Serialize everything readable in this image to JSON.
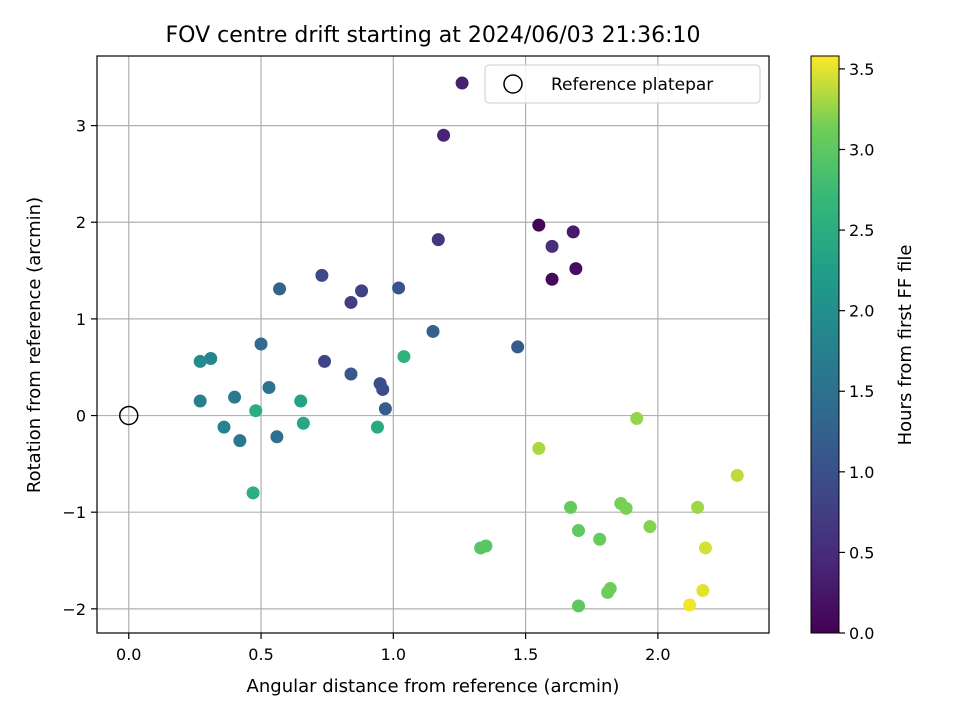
{
  "chart_data": {
    "type": "scatter",
    "title": "FOV centre drift starting at 2024/06/03 21:36:10",
    "xlabel": "Angular distance from reference (arcmin)",
    "ylabel": "Rotation from reference (arcmin)",
    "xlim": [
      -0.12,
      2.42
    ],
    "ylim": [
      -2.25,
      3.72
    ],
    "xticks": [
      0.0,
      0.5,
      1.0,
      1.5,
      2.0
    ],
    "xtick_labels": [
      "0.0",
      "0.5",
      "1.0",
      "1.5",
      "2.0"
    ],
    "yticks": [
      -2,
      -1,
      0,
      1,
      2,
      3
    ],
    "ytick_labels": [
      "−2",
      "−1",
      "0",
      "1",
      "2",
      "3"
    ],
    "grid": true,
    "legend": {
      "position": "top-right",
      "entries": [
        {
          "label": "Reference platepar",
          "marker": "open-circle"
        }
      ]
    },
    "reference_point": {
      "x": 0.0,
      "y": 0.0
    },
    "colorbar": {
      "label": "Hours from first FF file",
      "range": [
        0.0,
        3.58
      ],
      "ticks": [
        0.0,
        0.5,
        1.0,
        1.5,
        2.0,
        2.5,
        3.0,
        3.5
      ],
      "tick_labels": [
        "0.0",
        "0.5",
        "1.0",
        "1.5",
        "2.0",
        "2.5",
        "3.0",
        "3.5"
      ],
      "colormap": "viridis"
    },
    "points": [
      {
        "x": 1.55,
        "y": 1.97,
        "c": 0.05
      },
      {
        "x": 1.6,
        "y": 1.41,
        "c": 0.1
      },
      {
        "x": 1.69,
        "y": 1.52,
        "c": 0.15
      },
      {
        "x": 1.68,
        "y": 1.9,
        "c": 0.3
      },
      {
        "x": 1.26,
        "y": 3.44,
        "c": 0.35
      },
      {
        "x": 1.19,
        "y": 2.9,
        "c": 0.4
      },
      {
        "x": 1.6,
        "y": 1.75,
        "c": 0.55
      },
      {
        "x": 1.17,
        "y": 1.82,
        "c": 0.65
      },
      {
        "x": 0.84,
        "y": 1.17,
        "c": 0.75
      },
      {
        "x": 0.88,
        "y": 1.29,
        "c": 0.8
      },
      {
        "x": 0.74,
        "y": 0.56,
        "c": 0.85
      },
      {
        "x": 0.73,
        "y": 1.45,
        "c": 0.9
      },
      {
        "x": 0.96,
        "y": 0.27,
        "c": 0.95
      },
      {
        "x": 0.95,
        "y": 0.33,
        "c": 1.0
      },
      {
        "x": 1.02,
        "y": 1.32,
        "c": 1.05
      },
      {
        "x": 0.84,
        "y": 0.43,
        "c": 1.1
      },
      {
        "x": 1.47,
        "y": 0.71,
        "c": 1.15
      },
      {
        "x": 0.97,
        "y": 0.07,
        "c": 1.2
      },
      {
        "x": 1.15,
        "y": 0.87,
        "c": 1.25
      },
      {
        "x": 0.57,
        "y": 1.31,
        "c": 1.3
      },
      {
        "x": 0.5,
        "y": 0.74,
        "c": 1.4
      },
      {
        "x": 0.56,
        "y": -0.22,
        "c": 1.45
      },
      {
        "x": 0.53,
        "y": 0.29,
        "c": 1.55
      },
      {
        "x": 0.42,
        "y": -0.26,
        "c": 1.6
      },
      {
        "x": 0.4,
        "y": 0.19,
        "c": 1.65
      },
      {
        "x": 0.27,
        "y": 0.15,
        "c": 1.75
      },
      {
        "x": 0.36,
        "y": -0.12,
        "c": 1.8
      },
      {
        "x": 0.31,
        "y": 0.59,
        "c": 1.85
      },
      {
        "x": 0.27,
        "y": 0.56,
        "c": 1.95
      },
      {
        "x": 0.65,
        "y": 0.15,
        "c": 2.35
      },
      {
        "x": 0.66,
        "y": -0.08,
        "c": 2.4
      },
      {
        "x": 0.94,
        "y": -0.12,
        "c": 2.45
      },
      {
        "x": 0.48,
        "y": 0.05,
        "c": 2.5
      },
      {
        "x": 0.47,
        "y": -0.8,
        "c": 2.55
      },
      {
        "x": 1.04,
        "y": 0.61,
        "c": 2.6
      },
      {
        "x": 1.33,
        "y": -1.37,
        "c": 2.95
      },
      {
        "x": 1.35,
        "y": -1.35,
        "c": 2.97
      },
      {
        "x": 1.7,
        "y": -1.97,
        "c": 3.0
      },
      {
        "x": 1.7,
        "y": -1.19,
        "c": 3.03
      },
      {
        "x": 1.67,
        "y": -0.95,
        "c": 3.05
      },
      {
        "x": 1.78,
        "y": -1.28,
        "c": 3.08
      },
      {
        "x": 1.81,
        "y": -1.83,
        "c": 3.1
      },
      {
        "x": 1.82,
        "y": -1.79,
        "c": 3.12
      },
      {
        "x": 1.86,
        "y": -0.91,
        "c": 3.15
      },
      {
        "x": 1.88,
        "y": -0.96,
        "c": 3.17
      },
      {
        "x": 1.97,
        "y": -1.15,
        "c": 3.2
      },
      {
        "x": 1.92,
        "y": -0.03,
        "c": 3.25
      },
      {
        "x": 2.15,
        "y": -0.95,
        "c": 3.28
      },
      {
        "x": 1.55,
        "y": -0.34,
        "c": 3.32
      },
      {
        "x": 2.3,
        "y": -0.62,
        "c": 3.38
      },
      {
        "x": 2.18,
        "y": -1.37,
        "c": 3.45
      },
      {
        "x": 2.17,
        "y": -1.81,
        "c": 3.5
      },
      {
        "x": 2.12,
        "y": -1.96,
        "c": 3.55
      }
    ]
  }
}
